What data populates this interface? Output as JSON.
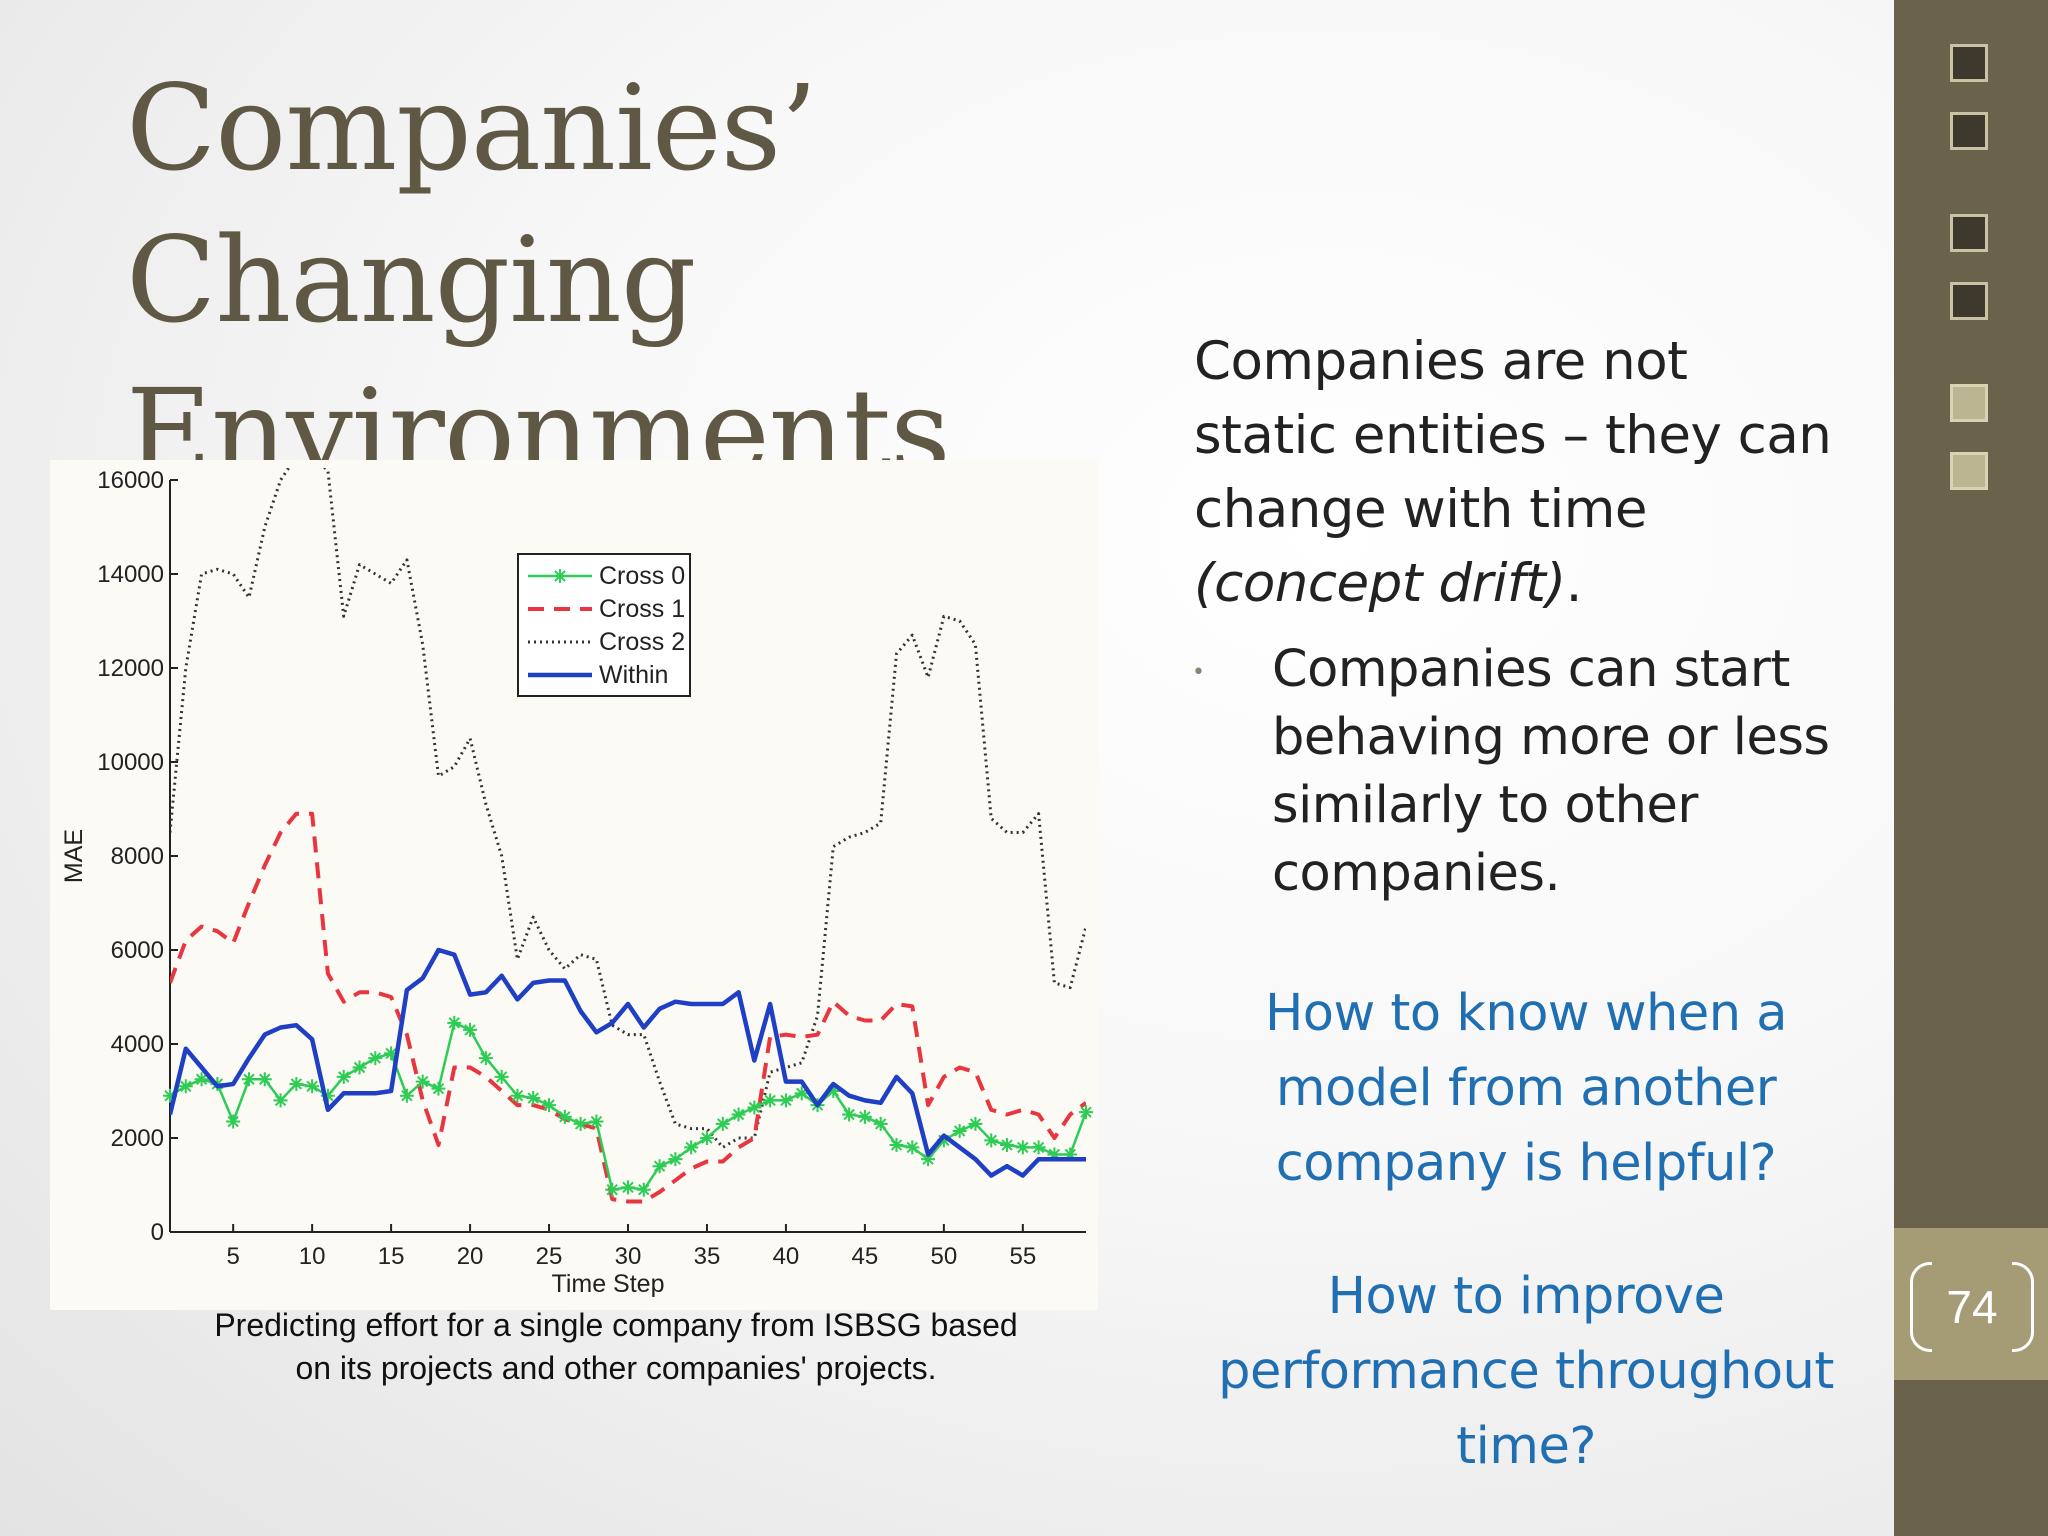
{
  "slide": {
    "title_line1": "Companies’ Changing",
    "title_line2": "Environments",
    "page_number": "74",
    "caption_line1": "Predicting effort for a single company from ISBSG based",
    "caption_line2": "on its projects and other companies' projects.",
    "main_text_part1": "Companies are not static entities – they can change with time ",
    "main_text_italic": "(concept drift)",
    "main_text_end": ".",
    "bullet": "Companies can start behaving more or less similarly to other companies.",
    "question1": "How to know when a model from another company is helpful?",
    "question2": "How to improve performance throughout time?",
    "colors": {
      "title": "#5f5844",
      "sidebar": "#6b624b",
      "question": "#1f6fb2"
    }
  },
  "chart_data": {
    "type": "line",
    "xlabel": "Time Step",
    "ylabel": "MAE",
    "xlim": [
      1,
      59
    ],
    "ylim": [
      0,
      16000
    ],
    "xticks": [
      5,
      10,
      15,
      20,
      25,
      30,
      35,
      40,
      45,
      50,
      55
    ],
    "yticks": [
      0,
      2000,
      4000,
      6000,
      8000,
      10000,
      12000,
      14000,
      16000
    ],
    "legend_position": "top-center",
    "x": [
      1,
      2,
      3,
      4,
      5,
      6,
      7,
      8,
      9,
      10,
      11,
      12,
      13,
      14,
      15,
      16,
      17,
      18,
      19,
      20,
      21,
      22,
      23,
      24,
      25,
      26,
      27,
      28,
      29,
      30,
      31,
      32,
      33,
      34,
      35,
      36,
      37,
      38,
      39,
      40,
      41,
      42,
      43,
      44,
      45,
      46,
      47,
      48,
      49,
      50,
      51,
      52,
      53,
      54,
      55,
      56,
      57,
      58,
      59
    ],
    "series": [
      {
        "name": "Cross 0",
        "color": "#2ecc55",
        "style": "solid-star",
        "values": [
          2900,
          3100,
          3250,
          3150,
          2350,
          3250,
          3250,
          2800,
          3150,
          3100,
          2900,
          3300,
          3500,
          3700,
          3800,
          2900,
          3200,
          3050,
          4450,
          4300,
          3700,
          3300,
          2900,
          2850,
          2700,
          2450,
          2300,
          2350,
          900,
          950,
          900,
          1400,
          1550,
          1800,
          2000,
          2300,
          2500,
          2650,
          2800,
          2800,
          2950,
          2700,
          3000,
          2500,
          2450,
          2300,
          1850,
          1800,
          1550,
          1950,
          2150,
          2300,
          1950,
          1850,
          1800,
          1800,
          1650,
          1650,
          2550
        ]
      },
      {
        "name": "Cross 1",
        "color": "#e8353f",
        "style": "dashed",
        "values": [
          5300,
          6200,
          6500,
          6400,
          6150,
          7000,
          7800,
          8500,
          8900,
          8900,
          5500,
          4900,
          5100,
          5100,
          5000,
          4200,
          2800,
          1850,
          3500,
          3500,
          3300,
          3000,
          2700,
          2700,
          2600,
          2400,
          2300,
          2200,
          700,
          650,
          650,
          850,
          1100,
          1350,
          1500,
          1500,
          1800,
          2000,
          4150,
          4200,
          4150,
          4200,
          4900,
          4600,
          4500,
          4500,
          4850,
          4800,
          2700,
          3300,
          3500,
          3400,
          2600,
          2500,
          2600,
          2500,
          2000,
          2500,
          2750
        ]
      },
      {
        "name": "Cross 2",
        "color": "#333333",
        "style": "dotted",
        "values": [
          8500,
          12000,
          14000,
          14100,
          14000,
          13500,
          15000,
          16000,
          16500,
          16500,
          16200,
          13100,
          14200,
          14000,
          13800,
          14300,
          12500,
          9700,
          9900,
          10500,
          9100,
          8000,
          5800,
          6700,
          6000,
          5600,
          5900,
          5800,
          4400,
          4200,
          4200,
          3200,
          2300,
          2200,
          2200,
          1800,
          2000,
          2000,
          3400,
          3500,
          3600,
          4600,
          8200,
          8400,
          8500,
          8700,
          12300,
          12700,
          11800,
          13100,
          13000,
          12500,
          8800,
          8500,
          8500,
          8900,
          5300,
          5200,
          6500
        ]
      },
      {
        "name": "Within",
        "color": "#1f3fc4",
        "style": "solid",
        "values": [
          2500,
          3900,
          3500,
          3100,
          3150,
          3700,
          4200,
          4350,
          4400,
          4100,
          2600,
          2950,
          2950,
          2950,
          3000,
          5150,
          5400,
          6000,
          5900,
          5050,
          5100,
          5450,
          4950,
          5300,
          5350,
          5350,
          4700,
          4250,
          4450,
          4850,
          4350,
          4750,
          4900,
          4850,
          4850,
          4850,
          5100,
          3650,
          4850,
          3200,
          3200,
          2700,
          3150,
          2900,
          2800,
          2750,
          3300,
          2950,
          1650,
          2050,
          1800,
          1550,
          1200,
          1400,
          1200,
          1550,
          1550,
          1550,
          1550
        ]
      }
    ]
  }
}
